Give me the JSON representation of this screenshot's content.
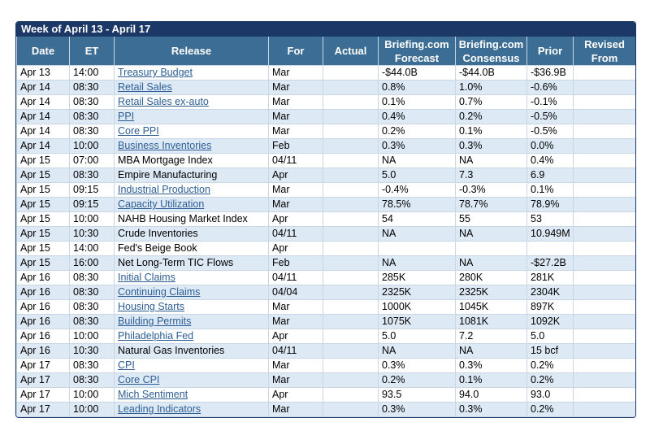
{
  "title": "Week of April 13 - April 17",
  "headers": [
    "Date",
    "ET",
    "Release",
    "For",
    "Actual",
    "Briefing.com\nForecast",
    "Briefing.com\nConsensus",
    "Prior",
    "Revised\nFrom"
  ],
  "rows": [
    {
      "date": "Apr 13",
      "et": "14:00",
      "release": "Treasury Budget",
      "link": true,
      "for": "Mar",
      "forecast": "-$44.0B",
      "consensus": "-$44.0B",
      "prior": "-$36.9B"
    },
    {
      "date": "Apr 14",
      "et": "08:30",
      "release": "Retail Sales",
      "link": true,
      "for": "Mar",
      "forecast": "0.8%",
      "consensus": "1.0%",
      "prior": "-0.6%"
    },
    {
      "date": "Apr 14",
      "et": "08:30",
      "release": "Retail Sales ex-auto",
      "link": true,
      "for": "Mar",
      "forecast": "0.1%",
      "consensus": "0.7%",
      "prior": "-0.1%"
    },
    {
      "date": "Apr 14",
      "et": "08:30",
      "release": "PPI",
      "link": true,
      "for": "Mar",
      "forecast": "0.4%",
      "consensus": "0.2%",
      "prior": "-0.5%"
    },
    {
      "date": "Apr 14",
      "et": "08:30",
      "release": "Core PPI",
      "link": true,
      "for": "Mar",
      "forecast": "0.2%",
      "consensus": "0.1%",
      "prior": "-0.5%"
    },
    {
      "date": "Apr 14",
      "et": "10:00",
      "release": "Business Inventories",
      "link": true,
      "for": "Feb",
      "forecast": "0.3%",
      "consensus": "0.3%",
      "prior": "0.0%"
    },
    {
      "date": "Apr 15",
      "et": "07:00",
      "release": "MBA Mortgage Index",
      "link": false,
      "for": "04/11",
      "forecast": "NA",
      "consensus": "NA",
      "prior": "0.4%"
    },
    {
      "date": "Apr 15",
      "et": "08:30",
      "release": "Empire Manufacturing",
      "link": false,
      "for": "Apr",
      "forecast": "5.0",
      "consensus": "7.3",
      "prior": "6.9"
    },
    {
      "date": "Apr 15",
      "et": "09:15",
      "release": "Industrial Production",
      "link": true,
      "for": "Mar",
      "forecast": "-0.4%",
      "consensus": "-0.3%",
      "prior": "0.1%"
    },
    {
      "date": "Apr 15",
      "et": "09:15",
      "release": "Capacity Utilization",
      "link": true,
      "for": "Mar",
      "forecast": "78.5%",
      "consensus": "78.7%",
      "prior": "78.9%"
    },
    {
      "date": "Apr 15",
      "et": "10:00",
      "release": "NAHB Housing Market Index",
      "link": false,
      "for": "Apr",
      "forecast": "54",
      "consensus": "55",
      "prior": "53"
    },
    {
      "date": "Apr 15",
      "et": "10:30",
      "release": "Crude Inventories",
      "link": false,
      "for": "04/11",
      "forecast": "NA",
      "consensus": "NA",
      "prior": "10.949M"
    },
    {
      "date": "Apr 15",
      "et": "14:00",
      "release": "Fed's Beige Book",
      "link": false,
      "for": "Apr"
    },
    {
      "date": "Apr 15",
      "et": "16:00",
      "release": "Net Long-Term TIC Flows",
      "link": false,
      "for": "Feb",
      "forecast": "NA",
      "consensus": "NA",
      "prior": "-$27.2B"
    },
    {
      "date": "Apr 16",
      "et": "08:30",
      "release": "Initial Claims",
      "link": true,
      "for": "04/11",
      "forecast": "285K",
      "consensus": "280K",
      "prior": "281K"
    },
    {
      "date": "Apr 16",
      "et": "08:30",
      "release": "Continuing Claims",
      "link": true,
      "for": "04/04",
      "forecast": "2325K",
      "consensus": "2325K",
      "prior": "2304K"
    },
    {
      "date": "Apr 16",
      "et": "08:30",
      "release": "Housing Starts",
      "link": true,
      "for": "Mar",
      "forecast": "1000K",
      "consensus": "1045K",
      "prior": "897K"
    },
    {
      "date": "Apr 16",
      "et": "08:30",
      "release": "Building Permits",
      "link": true,
      "for": "Mar",
      "forecast": "1075K",
      "consensus": "1081K",
      "prior": "1092K"
    },
    {
      "date": "Apr 16",
      "et": "10:00",
      "release": "Philadelphia Fed",
      "link": true,
      "for": "Apr",
      "forecast": "5.0",
      "consensus": "7.2",
      "prior": "5.0"
    },
    {
      "date": "Apr 16",
      "et": "10:30",
      "release": "Natural Gas Inventories",
      "link": false,
      "for": "04/11",
      "forecast": "NA",
      "consensus": "NA",
      "prior": "15 bcf"
    },
    {
      "date": "Apr 17",
      "et": "08:30",
      "release": "CPI",
      "link": true,
      "for": "Mar",
      "forecast": "0.3%",
      "consensus": "0.3%",
      "prior": "0.2%"
    },
    {
      "date": "Apr 17",
      "et": "08:30",
      "release": "Core CPI",
      "link": true,
      "for": "Mar",
      "forecast": "0.2%",
      "consensus": "0.1%",
      "prior": "0.2%"
    },
    {
      "date": "Apr 17",
      "et": "10:00",
      "release": "Mich Sentiment",
      "link": true,
      "for": "Apr",
      "forecast": "93.5",
      "consensus": "94.0",
      "prior": "93.0"
    },
    {
      "date": "Apr 17",
      "et": "10:00",
      "release": "Leading Indicators",
      "link": true,
      "for": "Mar",
      "forecast": "0.3%",
      "consensus": "0.3%",
      "prior": "0.2%"
    }
  ]
}
